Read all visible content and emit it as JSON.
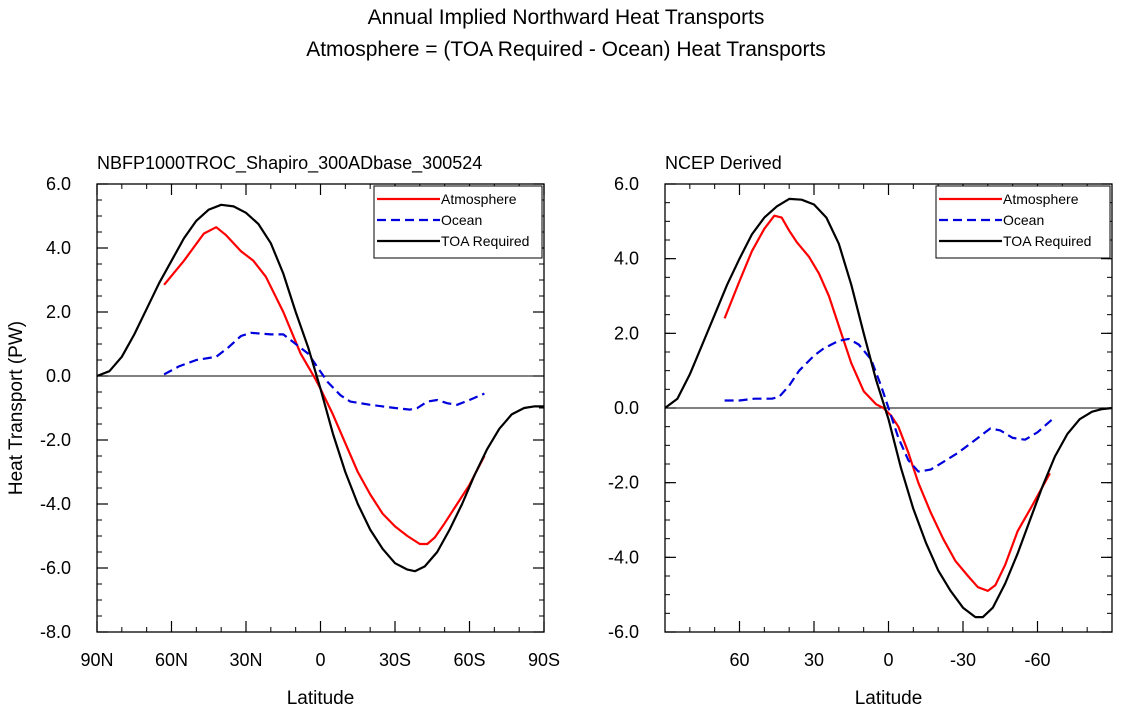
{
  "figure": {
    "title_line1": "Annual Implied Northward Heat Transports",
    "title_line2": "Atmosphere = (TOA Required - Ocean) Heat Transports"
  },
  "chart_data": [
    {
      "type": "line",
      "title": "NBFP1000TROC_Shapiro_300ADbase_300524",
      "xlabel": "Latitude",
      "ylabel": "Heat Transport (PW)",
      "xlim": [
        90,
        -90
      ],
      "ylim": [
        -8,
        6
      ],
      "x_ticks": [
        90,
        60,
        30,
        0,
        -30,
        -60,
        -90
      ],
      "x_tick_labels": [
        "90N",
        "60N",
        "30N",
        "0",
        "30S",
        "60S",
        "90S"
      ],
      "y_ticks": [
        -8,
        -6,
        -4,
        -2,
        0,
        2,
        4,
        6
      ],
      "y_tick_labels": [
        "-8.0",
        "-6.0",
        "-4.0",
        "-2.0",
        "0.0",
        "2.0",
        "4.0",
        "6.0"
      ],
      "legend_position": "top-right",
      "grid": false,
      "series": [
        {
          "name": "Atmosphere",
          "color": "#ff0000",
          "dash": "solid",
          "points": [
            [
              63,
              2.85
            ],
            [
              55,
              3.6
            ],
            [
              47,
              4.45
            ],
            [
              42,
              4.65
            ],
            [
              38,
              4.4
            ],
            [
              32,
              3.9
            ],
            [
              27,
              3.6
            ],
            [
              22,
              3.1
            ],
            [
              15,
              2.0
            ],
            [
              8,
              0.7
            ],
            [
              2,
              -0.1
            ],
            [
              0,
              -0.4
            ],
            [
              -5,
              -1.2
            ],
            [
              -10,
              -2.1
            ],
            [
              -15,
              -3.0
            ],
            [
              -20,
              -3.7
            ],
            [
              -25,
              -4.3
            ],
            [
              -30,
              -4.7
            ],
            [
              -35,
              -5.0
            ],
            [
              -40,
              -5.25
            ],
            [
              -43,
              -5.25
            ],
            [
              -46,
              -5.05
            ],
            [
              -50,
              -4.6
            ],
            [
              -55,
              -4.0
            ],
            [
              -60,
              -3.4
            ],
            [
              -66,
              -2.5
            ]
          ]
        },
        {
          "name": "Ocean",
          "color": "#0000dd",
          "dash": "dashed",
          "points": [
            [
              63,
              0.05
            ],
            [
              57,
              0.3
            ],
            [
              50,
              0.5
            ],
            [
              42,
              0.6
            ],
            [
              37,
              0.9
            ],
            [
              32,
              1.25
            ],
            [
              28,
              1.35
            ],
            [
              20,
              1.3
            ],
            [
              15,
              1.3
            ],
            [
              10,
              1.0
            ],
            [
              5,
              0.7
            ],
            [
              1,
              0.25
            ],
            [
              -3,
              -0.2
            ],
            [
              -8,
              -0.6
            ],
            [
              -12,
              -0.8
            ],
            [
              -20,
              -0.9
            ],
            [
              -30,
              -1.0
            ],
            [
              -36,
              -1.05
            ],
            [
              -39,
              -1.0
            ],
            [
              -43,
              -0.8
            ],
            [
              -47,
              -0.75
            ],
            [
              -51,
              -0.85
            ],
            [
              -55,
              -0.9
            ],
            [
              -60,
              -0.75
            ],
            [
              -66,
              -0.55
            ]
          ]
        },
        {
          "name": "TOA Required",
          "color": "#000000",
          "dash": "solid",
          "points": [
            [
              90,
              0.0
            ],
            [
              85,
              0.15
            ],
            [
              80,
              0.6
            ],
            [
              75,
              1.3
            ],
            [
              70,
              2.1
            ],
            [
              65,
              2.9
            ],
            [
              60,
              3.6
            ],
            [
              55,
              4.3
            ],
            [
              50,
              4.85
            ],
            [
              45,
              5.2
            ],
            [
              40,
              5.35
            ],
            [
              35,
              5.3
            ],
            [
              30,
              5.1
            ],
            [
              25,
              4.75
            ],
            [
              20,
              4.15
            ],
            [
              15,
              3.2
            ],
            [
              10,
              2.0
            ],
            [
              5,
              0.9
            ],
            [
              0,
              -0.4
            ],
            [
              -5,
              -1.8
            ],
            [
              -10,
              -3.0
            ],
            [
              -15,
              -4.0
            ],
            [
              -20,
              -4.8
            ],
            [
              -25,
              -5.4
            ],
            [
              -30,
              -5.85
            ],
            [
              -35,
              -6.05
            ],
            [
              -38,
              -6.1
            ],
            [
              -42,
              -5.95
            ],
            [
              -47,
              -5.5
            ],
            [
              -52,
              -4.8
            ],
            [
              -57,
              -4.0
            ],
            [
              -62,
              -3.1
            ],
            [
              -67,
              -2.3
            ],
            [
              -72,
              -1.65
            ],
            [
              -77,
              -1.2
            ],
            [
              -82,
              -1.0
            ],
            [
              -86,
              -0.95
            ],
            [
              -90,
              -0.95
            ]
          ]
        }
      ]
    },
    {
      "type": "line",
      "title": "NCEP Derived",
      "xlabel": "Latitude",
      "ylabel": "",
      "xlim": [
        90,
        -90
      ],
      "ylim": [
        -6,
        6
      ],
      "x_ticks": [
        60,
        30,
        0,
        -30,
        -60
      ],
      "x_tick_labels": [
        "60",
        "30",
        "0",
        "-30",
        "-60"
      ],
      "y_ticks": [
        -6,
        -4,
        -2,
        0,
        2,
        4,
        6
      ],
      "y_tick_labels": [
        "-6.0",
        "-4.0",
        "-2.0",
        "0.0",
        "2.0",
        "4.0",
        "6.0"
      ],
      "legend_position": "top-right",
      "grid": false,
      "series": [
        {
          "name": "Atmosphere",
          "color": "#ff0000",
          "dash": "solid",
          "points": [
            [
              66,
              2.4
            ],
            [
              60,
              3.4
            ],
            [
              55,
              4.2
            ],
            [
              50,
              4.8
            ],
            [
              46,
              5.15
            ],
            [
              43,
              5.1
            ],
            [
              40,
              4.75
            ],
            [
              37,
              4.45
            ],
            [
              32,
              4.05
            ],
            [
              28,
              3.6
            ],
            [
              24,
              3.0
            ],
            [
              20,
              2.2
            ],
            [
              15,
              1.2
            ],
            [
              10,
              0.45
            ],
            [
              5,
              0.1
            ],
            [
              2,
              0.0
            ],
            [
              -1,
              -0.2
            ],
            [
              -4,
              -0.5
            ],
            [
              -8,
              -1.2
            ],
            [
              -12,
              -2.0
            ],
            [
              -17,
              -2.8
            ],
            [
              -22,
              -3.5
            ],
            [
              -27,
              -4.1
            ],
            [
              -32,
              -4.5
            ],
            [
              -36,
              -4.8
            ],
            [
              -40,
              -4.9
            ],
            [
              -43,
              -4.75
            ],
            [
              -47,
              -4.2
            ],
            [
              -52,
              -3.3
            ],
            [
              -58,
              -2.6
            ],
            [
              -65,
              -1.75
            ]
          ]
        },
        {
          "name": "Ocean",
          "color": "#0000dd",
          "dash": "dashed",
          "points": [
            [
              66,
              0.2
            ],
            [
              60,
              0.2
            ],
            [
              54,
              0.25
            ],
            [
              47,
              0.25
            ],
            [
              44,
              0.3
            ],
            [
              40,
              0.6
            ],
            [
              36,
              1.0
            ],
            [
              30,
              1.4
            ],
            [
              26,
              1.6
            ],
            [
              20,
              1.8
            ],
            [
              16,
              1.85
            ],
            [
              12,
              1.7
            ],
            [
              7,
              1.3
            ],
            [
              3,
              0.6
            ],
            [
              0,
              0.0
            ],
            [
              -4,
              -0.8
            ],
            [
              -8,
              -1.4
            ],
            [
              -12,
              -1.7
            ],
            [
              -17,
              -1.65
            ],
            [
              -22,
              -1.45
            ],
            [
              -28,
              -1.2
            ],
            [
              -33,
              -0.95
            ],
            [
              -37,
              -0.75
            ],
            [
              -41,
              -0.55
            ],
            [
              -45,
              -0.6
            ],
            [
              -50,
              -0.8
            ],
            [
              -55,
              -0.85
            ],
            [
              -60,
              -0.65
            ],
            [
              -66,
              -0.3
            ]
          ]
        },
        {
          "name": "TOA Required",
          "color": "#000000",
          "dash": "solid",
          "points": [
            [
              90,
              0.0
            ],
            [
              85,
              0.25
            ],
            [
              80,
              0.9
            ],
            [
              75,
              1.7
            ],
            [
              70,
              2.5
            ],
            [
              65,
              3.3
            ],
            [
              60,
              4.0
            ],
            [
              55,
              4.65
            ],
            [
              50,
              5.1
            ],
            [
              45,
              5.4
            ],
            [
              40,
              5.6
            ],
            [
              35,
              5.58
            ],
            [
              30,
              5.45
            ],
            [
              25,
              5.1
            ],
            [
              20,
              4.4
            ],
            [
              15,
              3.3
            ],
            [
              10,
              2.0
            ],
            [
              5,
              0.75
            ],
            [
              0,
              -0.3
            ],
            [
              -5,
              -1.6
            ],
            [
              -10,
              -2.7
            ],
            [
              -15,
              -3.6
            ],
            [
              -20,
              -4.35
            ],
            [
              -25,
              -4.9
            ],
            [
              -30,
              -5.35
            ],
            [
              -35,
              -5.6
            ],
            [
              -38,
              -5.6
            ],
            [
              -42,
              -5.35
            ],
            [
              -47,
              -4.7
            ],
            [
              -52,
              -3.9
            ],
            [
              -57,
              -3.0
            ],
            [
              -62,
              -2.1
            ],
            [
              -67,
              -1.3
            ],
            [
              -72,
              -0.7
            ],
            [
              -77,
              -0.3
            ],
            [
              -82,
              -0.1
            ],
            [
              -86,
              -0.03
            ],
            [
              -90,
              0.0
            ]
          ]
        }
      ]
    }
  ]
}
